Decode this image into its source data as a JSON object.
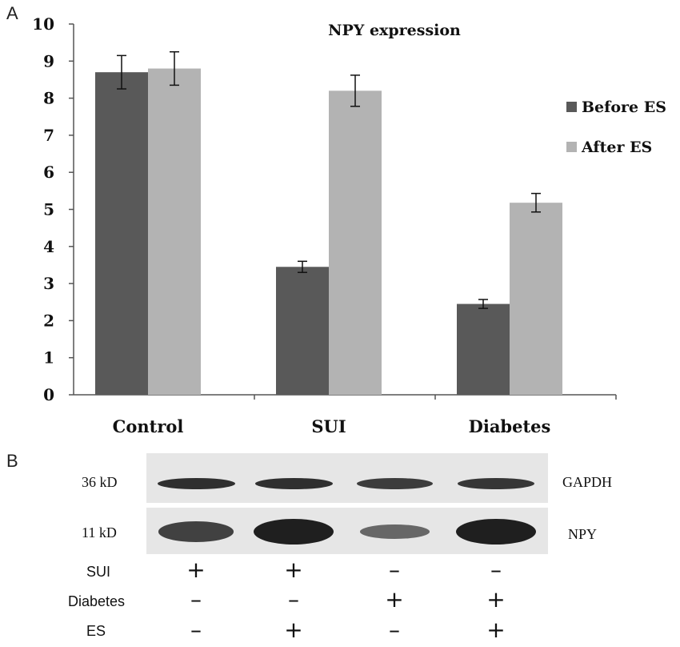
{
  "panel_labels": {
    "a": "A",
    "b": "B"
  },
  "chart_data": {
    "type": "bar",
    "title": "NPY expression",
    "categories": [
      "Control",
      "SUI",
      "Diabetes"
    ],
    "series": [
      {
        "name": "Before ES",
        "color": "#595959",
        "values": [
          8.7,
          3.45,
          2.45
        ],
        "errors": [
          0.45,
          0.15,
          0.12
        ]
      },
      {
        "name": "After ES",
        "color": "#b3b3b3",
        "values": [
          8.8,
          8.2,
          5.18
        ],
        "errors": [
          0.45,
          0.42,
          0.25
        ]
      }
    ],
    "ylim": [
      0,
      10
    ],
    "yticks": [
      "0",
      "1",
      "2",
      "3",
      "4",
      "5",
      "6",
      "7",
      "8",
      "9",
      "10"
    ],
    "grid": false,
    "legend_position": "right"
  },
  "blot": {
    "rows": [
      {
        "kd": "36 kD",
        "protein": "GAPDH",
        "intensities": [
          0.85,
          0.85,
          0.75,
          0.8
        ]
      },
      {
        "kd": "11 kD",
        "protein": "NPY",
        "intensities": [
          0.7,
          1.0,
          0.35,
          1.0
        ]
      }
    ],
    "conditions": [
      {
        "label": "SUI",
        "signs": [
          "+",
          "+",
          "–",
          "–"
        ]
      },
      {
        "label": "Diabetes",
        "signs": [
          "–",
          "–",
          "+",
          "+"
        ]
      },
      {
        "label": "ES",
        "signs": [
          "–",
          "+",
          "–",
          "+"
        ]
      }
    ]
  }
}
